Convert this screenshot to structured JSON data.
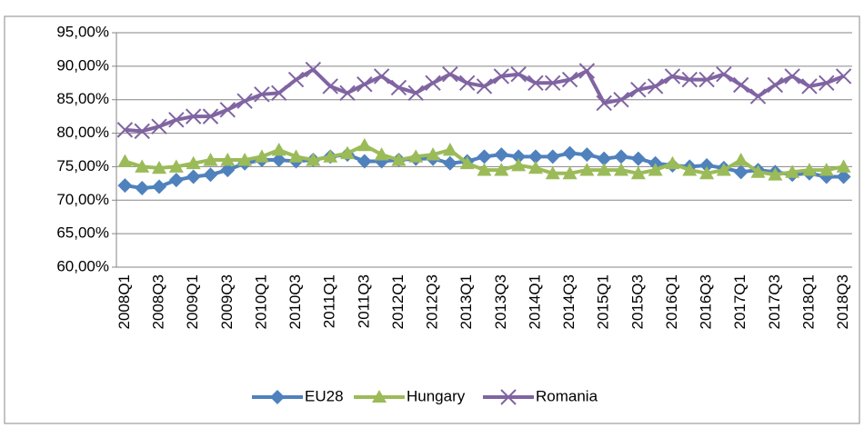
{
  "chart_data": {
    "type": "line",
    "categories": [
      "2008Q1",
      null,
      "2008Q3",
      null,
      "2009Q1",
      null,
      "2009Q3",
      null,
      "2010Q1",
      null,
      "2010Q3",
      null,
      "2011Q1",
      null,
      "2011Q3",
      null,
      "2012Q1",
      null,
      "2012Q3",
      null,
      "2013Q1",
      null,
      "2013Q3",
      null,
      "2014Q1",
      null,
      "2014Q3",
      null,
      "2015Q1",
      null,
      "2015Q3",
      null,
      "2016Q1",
      null,
      "2016Q3",
      null,
      "2017Q1",
      null,
      "2017Q3",
      null,
      "2018Q1",
      null,
      "2018Q3"
    ],
    "series": [
      {
        "name": "EU28",
        "color": "#4f81bd",
        "marker": "diamond",
        "values": [
          72.2,
          71.8,
          72.0,
          73.0,
          73.5,
          73.8,
          74.5,
          75.5,
          76.0,
          76.0,
          75.8,
          76.0,
          76.5,
          76.8,
          75.8,
          75.8,
          76.0,
          76.2,
          76.2,
          75.5,
          75.8,
          76.5,
          76.8,
          76.5,
          76.5,
          76.5,
          77.0,
          76.8,
          76.2,
          76.5,
          76.2,
          75.5,
          75.2,
          75.0,
          75.2,
          74.8,
          74.2,
          74.5,
          74.2,
          73.8,
          74.0,
          73.5,
          73.5
        ]
      },
      {
        "name": "Hungary",
        "color": "#9bbb59",
        "marker": "triangle",
        "values": [
          75.8,
          75.0,
          74.8,
          75.0,
          75.5,
          76.0,
          76.0,
          76.0,
          76.5,
          77.5,
          76.5,
          76.0,
          76.5,
          77.0,
          78.2,
          76.8,
          76.0,
          76.5,
          76.8,
          77.5,
          75.5,
          74.5,
          74.5,
          75.2,
          74.8,
          74.0,
          74.0,
          74.5,
          74.5,
          74.5,
          74.0,
          74.5,
          75.5,
          74.5,
          74.0,
          74.5,
          76.0,
          74.2,
          73.8,
          74.2,
          74.5,
          74.5,
          75.0
        ]
      },
      {
        "name": "Romania",
        "color": "#8064a2",
        "marker": "x",
        "values": [
          80.5,
          80.3,
          81.0,
          82.0,
          82.5,
          82.5,
          83.5,
          84.8,
          85.8,
          86.0,
          88.0,
          89.5,
          87.0,
          86.0,
          87.3,
          88.5,
          86.8,
          86.0,
          87.5,
          88.8,
          87.5,
          87.0,
          88.5,
          88.8,
          87.5,
          87.5,
          88.0,
          89.3,
          84.5,
          85.0,
          86.5,
          87.0,
          88.5,
          88.0,
          88.0,
          88.8,
          87.2,
          85.5,
          87.2,
          88.5,
          87.0,
          87.5,
          88.5
        ]
      }
    ],
    "ylim": [
      60,
      95
    ],
    "yticks": [
      {
        "value": 60,
        "label": "60,00%"
      },
      {
        "value": 65,
        "label": "65,00%"
      },
      {
        "value": 70,
        "label": "70,00%"
      },
      {
        "value": 75,
        "label": "75,00%"
      },
      {
        "value": 80,
        "label": "80,00%"
      },
      {
        "value": 85,
        "label": "85,00%"
      },
      {
        "value": 90,
        "label": "90,00%"
      },
      {
        "value": 95,
        "label": "95,00%"
      }
    ],
    "grid": true,
    "legend": "bottom"
  }
}
